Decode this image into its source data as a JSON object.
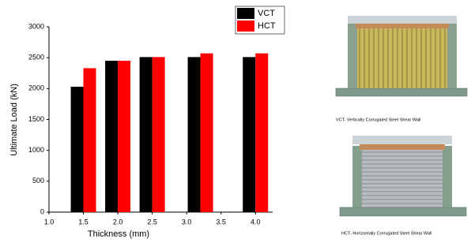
{
  "chart_data": {
    "type": "bar",
    "x_label": "Thickness (mm)",
    "y_label": "Ultimate Load (kN)",
    "x": [
      1.5,
      2.0,
      2.5,
      3.2,
      4.0
    ],
    "series": [
      {
        "name": "VCT",
        "color": "#000000",
        "values": [
          2030,
          2450,
          2510,
          2510,
          2510
        ]
      },
      {
        "name": "HCT",
        "color": "#ff0000",
        "values": [
          2330,
          2450,
          2510,
          2570,
          2570
        ]
      }
    ],
    "xlim": [
      1.0,
      4.25
    ],
    "xticks": [
      {
        "value": 1.0,
        "label": "1.0"
      },
      1.5,
      {
        "value": 2.0,
        "label": "2.0"
      },
      2.5,
      {
        "value": 3.0,
        "label": "3.0"
      },
      3.5,
      {
        "value": 4.0,
        "label": "4.0"
      }
    ],
    "ylim": [
      0,
      3000
    ],
    "yticks": [
      0,
      500,
      1000,
      1500,
      2000,
      2500,
      3000
    ],
    "legend": "upper right"
  },
  "panels": [
    {
      "caption": "VCT- Vertically Corrugated Steel Shear Wall"
    },
    {
      "caption": "HCT- Horizontally Corrugated Steel Shear Wall"
    }
  ]
}
